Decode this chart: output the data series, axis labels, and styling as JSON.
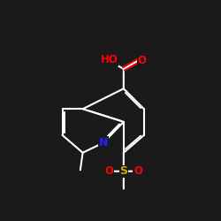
{
  "background_color": "#1a1a1a",
  "bond_color": "#ffffff",
  "atom_colors": {
    "N": "#2222ff",
    "O": "#ff0000",
    "S": "#ccaa00",
    "C": "#ffffff"
  },
  "figsize": [
    2.5,
    2.5
  ],
  "dpi": 100
}
